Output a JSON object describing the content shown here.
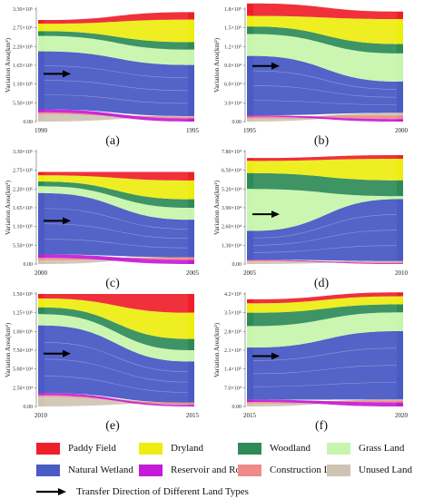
{
  "land_types": [
    {
      "name": "Paddy Field",
      "color": "#ef1f2a"
    },
    {
      "name": "Dryland",
      "color": "#eded10"
    },
    {
      "name": "Woodland",
      "color": "#2e8b57"
    },
    {
      "name": "Grass Land",
      "color": "#c7f5ad"
    },
    {
      "name": "Natural Wetland",
      "color": "#4a5bc4"
    },
    {
      "name": "Reservoir and Rond",
      "color": "#c51bd9"
    },
    {
      "name": "Construction Land",
      "color": "#ee8b88"
    },
    {
      "name": "Unused Land",
      "color": "#cfc4b3"
    }
  ],
  "arrow_label": "Transfer Direction of Different Land Types",
  "chart_data": [
    {
      "type": "sankey",
      "panel_label": "(a)",
      "ylabel": "Variation Area(km²)",
      "x_labels": [
        "1990",
        "1995"
      ],
      "ylim": [
        0,
        330000
      ],
      "y_ticks": [
        "0.00",
        "5.50×10⁴",
        "1.10×10⁵",
        "1.65×10⁵",
        "2.20×10⁵",
        "2.75×10⁵",
        "3.30×10⁵"
      ],
      "left_stack_order": [
        "Paddy Field",
        "Dryland",
        "Woodland",
        "Grass Land",
        "Natural Wetland",
        "Reservoir and Rond",
        "Construction Land",
        "Unused Land"
      ],
      "left": {
        "Paddy Field": 11000,
        "Dryland": 22000,
        "Woodland": 14000,
        "Grass Land": 45000,
        "Natural Wetland": 170000,
        "Reservoir and Rond": 9000,
        "Construction Land": 5000,
        "Unused Land": 22000
      },
      "right_stack_order": [
        "Paddy Field",
        "Dryland",
        "Woodland",
        "Grass Land",
        "Natural Wetland",
        "Unused Land",
        "Construction Land",
        "Reservoir and Rond"
      ],
      "right": {
        "Paddy Field": 22000,
        "Dryland": 66000,
        "Woodland": 22000,
        "Grass Land": 45000,
        "Natural Wetland": 150000,
        "Reservoir and Rond": 9000,
        "Construction Land": 5000,
        "Unused Land": 2000
      }
    },
    {
      "type": "sankey",
      "panel_label": "(b)",
      "ylabel": "Variation Area(km²)",
      "x_labels": [
        "1995",
        "2000"
      ],
      "ylim": [
        0,
        180000
      ],
      "y_ticks": [
        "0.00",
        "3.0×10⁴",
        "6.0×10⁴",
        "9.0×10⁴",
        "1.2×10⁵",
        "1.5×10⁵",
        "1.8×10⁵"
      ],
      "left_stack_order": [
        "Paddy Field",
        "Dryland",
        "Woodland",
        "Grass Land",
        "Natural Wetland",
        "Reservoir and Rond",
        "Construction Land",
        "Unused Land"
      ],
      "left": {
        "Paddy Field": 20000,
        "Dryland": 17000,
        "Woodland": 12000,
        "Grass Land": 35000,
        "Natural Wetland": 95000,
        "Reservoir and Rond": 2000,
        "Construction Land": 3000,
        "Unused Land": 5000
      },
      "right_stack_order": [
        "Paddy Field",
        "Dryland",
        "Woodland",
        "Grass Land",
        "Natural Wetland",
        "Unused Land",
        "Construction Land",
        "Reservoir and Rond"
      ],
      "right": {
        "Paddy Field": 12000,
        "Dryland": 40000,
        "Woodland": 15000,
        "Grass Land": 45000,
        "Natural Wetland": 50000,
        "Reservoir and Rond": 4000,
        "Construction Land": 6000,
        "Unused Land": 4000
      }
    },
    {
      "type": "sankey",
      "panel_label": "(c)",
      "ylabel": "Variation Area(km²)",
      "x_labels": [
        "2000",
        "2005"
      ],
      "ylim": [
        0,
        330000
      ],
      "y_ticks": [
        "0.00",
        "5.50×10⁴",
        "1.10×10⁵",
        "1.65×10⁵",
        "2.20×10⁵",
        "2.75×10⁵",
        "3.30×10⁵"
      ],
      "left_stack_order": [
        "Paddy Field",
        "Dryland",
        "Woodland",
        "Grass Land",
        "Natural Wetland",
        "Reservoir and Rond",
        "Construction Land",
        "Unused Land"
      ],
      "left": {
        "Paddy Field": 10000,
        "Dryland": 18000,
        "Woodland": 14000,
        "Grass Land": 20000,
        "Natural Wetland": 180000,
        "Reservoir and Rond": 10000,
        "Construction Land": 6000,
        "Unused Land": 12000
      },
      "right_stack_order": [
        "Paddy Field",
        "Dryland",
        "Woodland",
        "Grass Land",
        "Natural Wetland",
        "Unused Land",
        "Construction Land",
        "Reservoir and Rond"
      ],
      "right": {
        "Paddy Field": 25000,
        "Dryland": 55000,
        "Woodland": 25000,
        "Grass Land": 35000,
        "Natural Wetland": 110000,
        "Reservoir and Rond": 12000,
        "Construction Land": 8000,
        "Unused Land": 0
      }
    },
    {
      "type": "sankey",
      "panel_label": "(d)",
      "ylabel": "Variation Area(km²)",
      "x_labels": [
        "2005",
        "2010"
      ],
      "ylim": [
        0,
        78000
      ],
      "y_ticks": [
        "0.00",
        "1.30×10⁴",
        "2.60×10⁴",
        "3.90×10⁴",
        "5.20×10⁴",
        "6.50×10⁴",
        "7.80×10⁴"
      ],
      "left_stack_order": [
        "Paddy Field",
        "Dryland",
        "Woodland",
        "Grass Land",
        "Natural Wetland",
        "Reservoir and Rond",
        "Construction Land",
        "Unused Land"
      ],
      "left": {
        "Paddy Field": 2000,
        "Dryland": 8500,
        "Woodland": 11000,
        "Grass Land": 29000,
        "Natural Wetland": 20000,
        "Reservoir and Rond": 500,
        "Construction Land": 700,
        "Unused Land": 1800
      },
      "right_stack_order": [
        "Paddy Field",
        "Dryland",
        "Woodland",
        "Grass Land",
        "Natural Wetland",
        "Unused Land",
        "Construction Land",
        "Reservoir and Rond"
      ],
      "right": {
        "Paddy Field": 2500,
        "Dryland": 15000,
        "Woodland": 11000,
        "Grass Land": 2000,
        "Natural Wetland": 43000,
        "Reservoir and Rond": 500,
        "Construction Land": 1000,
        "Unused Land": 500
      }
    },
    {
      "type": "sankey",
      "panel_label": "(e)",
      "ylabel": "Variation Area(km²)",
      "x_labels": [
        "2010",
        "2015"
      ],
      "ylim": [
        0,
        150000
      ],
      "y_ticks": [
        "0.00",
        "2.50×10⁴",
        "5.00×10⁴",
        "7.50×10⁴",
        "1.00×10⁵",
        "1.25×10⁵",
        "1.50×10⁵"
      ],
      "left_stack_order": [
        "Paddy Field",
        "Dryland",
        "Woodland",
        "Grass Land",
        "Natural Wetland",
        "Reservoir and Rond",
        "Construction Land",
        "Unused Land"
      ],
      "left": {
        "Paddy Field": 6000,
        "Dryland": 12000,
        "Woodland": 9000,
        "Grass Land": 15000,
        "Natural Wetland": 90000,
        "Reservoir and Rond": 3000,
        "Construction Land": 2000,
        "Unused Land": 13000
      },
      "right_stack_order": [
        "Paddy Field",
        "Dryland",
        "Woodland",
        "Grass Land",
        "Natural Wetland",
        "Unused Land",
        "Construction Land",
        "Reservoir and Rond"
      ],
      "right": {
        "Paddy Field": 25000,
        "Dryland": 35000,
        "Woodland": 15000,
        "Grass Land": 15000,
        "Natural Wetland": 55000,
        "Reservoir and Rond": 2000,
        "Construction Land": 3000,
        "Unused Land": 0
      }
    },
    {
      "type": "sankey",
      "panel_label": "(f)",
      "ylabel": "Variation Area(km²)",
      "x_labels": [
        "2015",
        "2020"
      ],
      "ylim": [
        0,
        420000
      ],
      "y_ticks": [
        "0.00",
        "7.0×10⁴",
        "1.4×10⁵",
        "2.1×10⁵",
        "2.8×10⁵",
        "3.5×10⁵",
        "4.2×10⁵"
      ],
      "left_stack_order": [
        "Paddy Field",
        "Dryland",
        "Woodland",
        "Grass Land",
        "Natural Wetland",
        "Reservoir and Rond",
        "Construction Land",
        "Unused Land"
      ],
      "left": {
        "Paddy Field": 15000,
        "Dryland": 35000,
        "Woodland": 50000,
        "Grass Land": 80000,
        "Natural Wetland": 195000,
        "Reservoir and Rond": 8000,
        "Construction Land": 6000,
        "Unused Land": 11000
      },
      "right_stack_order": [
        "Paddy Field",
        "Dryland",
        "Woodland",
        "Grass Land",
        "Natural Wetland",
        "Unused Land",
        "Construction Land",
        "Reservoir and Rond"
      ],
      "right": {
        "Paddy Field": 15000,
        "Dryland": 30000,
        "Woodland": 30000,
        "Grass Land": 70000,
        "Natural Wetland": 255000,
        "Reservoir and Rond": 15000,
        "Construction Land": 8000,
        "Unused Land": 3000
      }
    }
  ]
}
